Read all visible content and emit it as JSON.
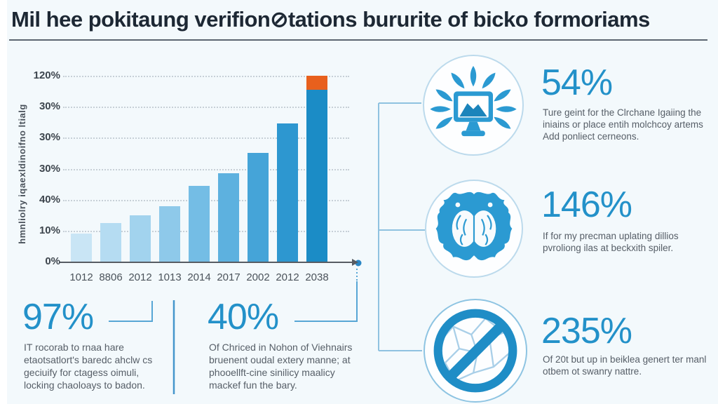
{
  "title": "Mil hee pokitaung verifion⊘tations bururite of bicko formoriams",
  "chart_data": {
    "type": "bar",
    "title": "",
    "xlabel": "",
    "ylabel": "hmnliolry iqaexldinoifno ltialg",
    "y_tick_labels_top_to_bottom": [
      "120%",
      "30%",
      "30%",
      "30%",
      "40%",
      "10%"
    ],
    "baseline_label": "0%",
    "categories": [
      "1012",
      "8806",
      "2012",
      "1013",
      "2014",
      "2017",
      "2002",
      "2012",
      "2038"
    ],
    "values": [
      18,
      25,
      30,
      36,
      49,
      57,
      70,
      89,
      111
    ],
    "top_segment": {
      "category_index": 8,
      "value": 9,
      "color": "#e8601d"
    },
    "ylim": [
      0,
      120
    ],
    "grid": "dotted-horizontal",
    "legend": "none",
    "bar_colors": [
      "#c9e5f5",
      "#b5dcf2",
      "#a2d3ee",
      "#8ec9ea",
      "#74bde5",
      "#5db1df",
      "#45a4d8",
      "#2d97d0",
      "#1b8cc6"
    ]
  },
  "stats_right": [
    {
      "value": "54%",
      "icon": "monitor-mountain-icon",
      "desc": "Ture geint for the Clrchane Igaiing the iniains or place entih molchcoy artems Add ponliect cerneons."
    },
    {
      "value": "146%",
      "icon": "brain-emblem-icon",
      "desc": "If for my precman uplating dillios pvroliong ilas at beckxith spiler."
    },
    {
      "value": "235%",
      "icon": "no-network-icon",
      "desc": "Of 20t but up in beiklea genert ter manl otbem ot swanry nattre."
    }
  ],
  "stats_bottom": [
    {
      "value": "97%",
      "desc": "IT rocorab to rnaa hare etaotsatlort's baredc ahclw cs geciuify for ctagess oimuli, locking chaoloays to badon."
    },
    {
      "value": "40%",
      "desc": "Of Chriced in Nohon of Viehnairs bruenent oudal extery manne; at phooellft-cine sinilicy maalicy mackef fun the bary."
    }
  ],
  "colors": {
    "accent_blue": "#2391c9",
    "bar_orange": "#e8601d",
    "icon_blue": "#2b9ad2",
    "icon_blue_dark": "#1b84bb",
    "title_text": "#1d2834",
    "body_text": "#565e67",
    "connector_blue": "#57a6d5",
    "background": "#f3f9fc"
  }
}
